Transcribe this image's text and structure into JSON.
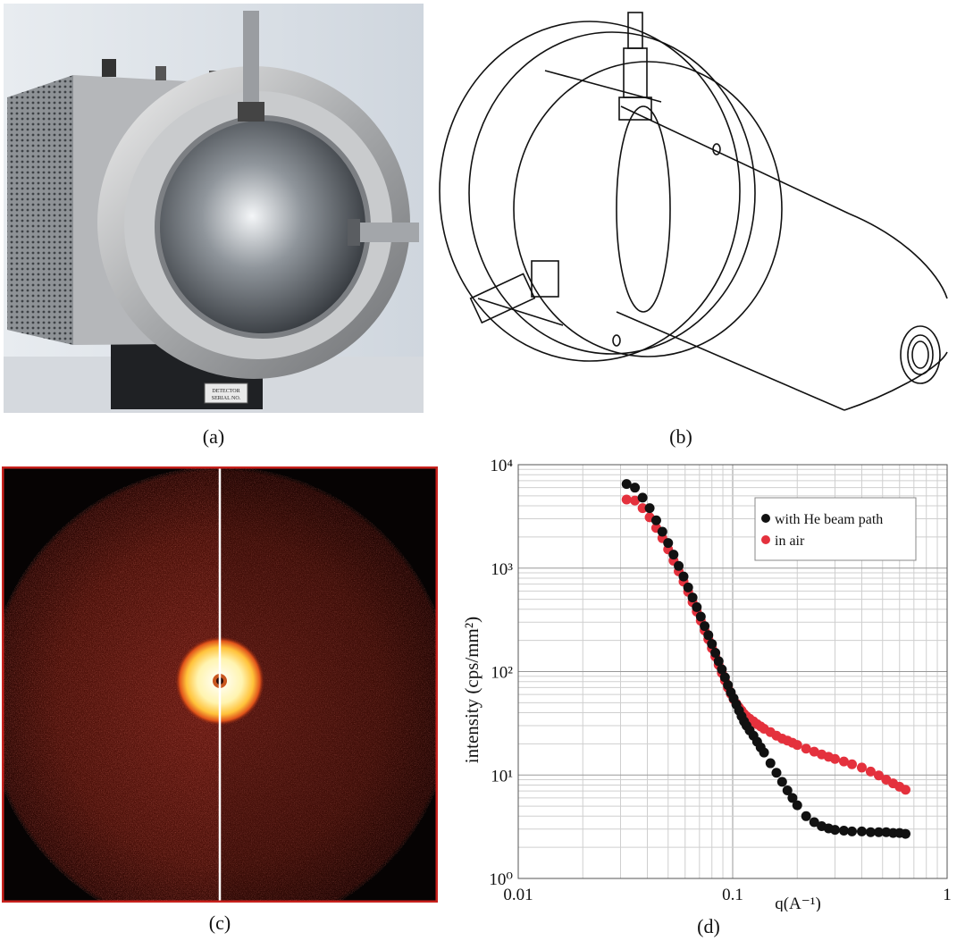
{
  "figure": {
    "captions": {
      "a": "(a)",
      "b": "(b)",
      "c": "(c)",
      "d": "(d)"
    },
    "photo_panel": {
      "label_plate_lines": [
        "DETECTOR",
        "SERIAL NO."
      ]
    }
  },
  "colors": {
    "he_series": "#111111",
    "air_series": "#e4313d",
    "detector_frame": "#c8211d"
  },
  "chart_data": {
    "type": "scatter",
    "title": "",
    "xlabel": "q(A⁻¹)",
    "ylabel": "intensity (cps/mm²)",
    "x_scale": "log",
    "y_scale": "log",
    "xlim": [
      0.01,
      1
    ],
    "ylim": [
      1,
      10000
    ],
    "x_ticks": [
      "0.01",
      "0.1",
      "1"
    ],
    "y_ticks": [
      "10⁰",
      "10¹",
      "10²",
      "10³",
      "10⁴"
    ],
    "grid": true,
    "legend_position": "top-right",
    "series": [
      {
        "name": "with He beam path",
        "color": "#111111",
        "x": [
          0.032,
          0.035,
          0.038,
          0.041,
          0.044,
          0.047,
          0.05,
          0.053,
          0.056,
          0.059,
          0.062,
          0.065,
          0.068,
          0.071,
          0.074,
          0.077,
          0.08,
          0.083,
          0.086,
          0.089,
          0.092,
          0.095,
          0.098,
          0.101,
          0.104,
          0.107,
          0.11,
          0.113,
          0.116,
          0.12,
          0.125,
          0.13,
          0.135,
          0.14,
          0.15,
          0.16,
          0.17,
          0.18,
          0.19,
          0.2,
          0.22,
          0.24,
          0.26,
          0.28,
          0.3,
          0.33,
          0.36,
          0.4,
          0.44,
          0.48,
          0.52,
          0.56,
          0.6,
          0.64
        ],
        "y": [
          6500,
          6000,
          4800,
          3800,
          2900,
          2250,
          1750,
          1350,
          1050,
          830,
          650,
          520,
          420,
          340,
          275,
          225,
          185,
          152,
          126,
          105,
          88,
          74,
          63,
          55,
          48,
          42,
          37,
          33,
          30,
          27,
          24,
          21,
          18.5,
          16.5,
          13,
          10.5,
          8.6,
          7.1,
          6.0,
          5.1,
          4.0,
          3.5,
          3.2,
          3.05,
          2.95,
          2.9,
          2.85,
          2.85,
          2.8,
          2.8,
          2.8,
          2.75,
          2.75,
          2.7
        ]
      },
      {
        "name": "in air",
        "color": "#e4313d",
        "x": [
          0.032,
          0.035,
          0.038,
          0.041,
          0.044,
          0.047,
          0.05,
          0.053,
          0.056,
          0.059,
          0.062,
          0.065,
          0.068,
          0.071,
          0.074,
          0.077,
          0.08,
          0.083,
          0.086,
          0.089,
          0.092,
          0.095,
          0.098,
          0.101,
          0.104,
          0.107,
          0.11,
          0.113,
          0.116,
          0.12,
          0.125,
          0.13,
          0.135,
          0.14,
          0.15,
          0.16,
          0.17,
          0.18,
          0.19,
          0.2,
          0.22,
          0.24,
          0.26,
          0.28,
          0.3,
          0.33,
          0.36,
          0.4,
          0.44,
          0.48,
          0.52,
          0.56,
          0.6,
          0.64
        ],
        "y": [
          4600,
          4500,
          3800,
          3100,
          2450,
          1950,
          1520,
          1180,
          930,
          740,
          590,
          470,
          380,
          310,
          250,
          205,
          168,
          140,
          116,
          97,
          82,
          70,
          61,
          54,
          49,
          45,
          42,
          39,
          37,
          35,
          33,
          31,
          29.5,
          28,
          26,
          24,
          22.5,
          21.5,
          20.5,
          19.5,
          18,
          16.8,
          15.8,
          15.0,
          14.3,
          13.5,
          12.7,
          11.8,
          10.8,
          9.9,
          9.0,
          8.3,
          7.7,
          7.2
        ]
      }
    ]
  }
}
